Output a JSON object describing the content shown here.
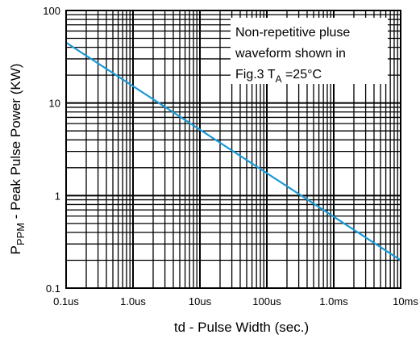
{
  "chart_data": {
    "type": "line",
    "xlabel": "td - Pulse Width (sec.)",
    "ylabel": {
      "prefix": "P",
      "subscript": "PPM",
      "suffix": " - Peak Pulse Power (KW)"
    },
    "x_scale": "log",
    "y_scale": "log",
    "xlim": [
      "0.1us",
      "10ms"
    ],
    "ylim": [
      0.1,
      100
    ],
    "x_ticks": [
      {
        "label": "0.1us",
        "seconds": 1e-07
      },
      {
        "label": "1.0us",
        "seconds": 1e-06
      },
      {
        "label": "10us",
        "seconds": 1e-05
      },
      {
        "label": "100us",
        "seconds": 0.0001
      },
      {
        "label": "1.0ms",
        "seconds": 0.001
      },
      {
        "label": "10ms",
        "seconds": 0.01
      }
    ],
    "y_ticks": [
      {
        "label": "0.1",
        "value": 0.1
      },
      {
        "label": "1",
        "value": 1
      },
      {
        "label": "10",
        "value": 10
      },
      {
        "label": "100",
        "value": 100
      }
    ],
    "grid": true,
    "series": [
      {
        "color": "#1a9ad6",
        "points": [
          {
            "x": "0.1us",
            "y": 45
          },
          {
            "x": "10ms",
            "y": 0.2
          }
        ]
      }
    ],
    "annotation": {
      "lines": [
        "Non-repetitive pluse",
        "waveform shown in"
      ],
      "last_line": {
        "prefix": "Fig.3 T",
        "subscript": "A",
        "suffix": " =25°C"
      },
      "position": "top-right"
    }
  },
  "colors": {
    "grid": "#000000",
    "line": "#1a9ad6",
    "background": "#ffffff"
  }
}
